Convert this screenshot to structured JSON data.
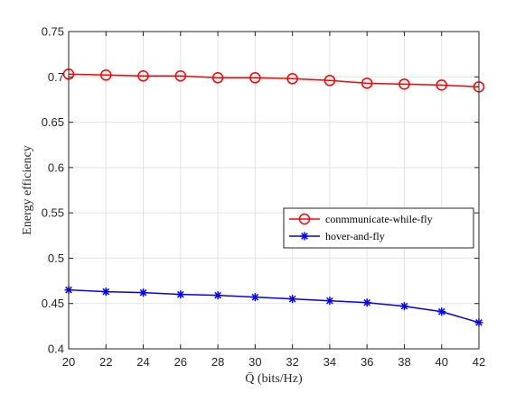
{
  "chart_data": {
    "type": "line",
    "xlabel": "Q̄ (bits/Hz)",
    "ylabel": "Energy efficiency",
    "xlim": [
      20,
      42
    ],
    "ylim": [
      0.4,
      0.75
    ],
    "xticks": [
      "20",
      "22",
      "24",
      "26",
      "28",
      "30",
      "32",
      "34",
      "36",
      "38",
      "40",
      "42"
    ],
    "yticks": [
      "0.4",
      "0.45",
      "0.5",
      "0.55",
      "0.6",
      "0.65",
      "0.7",
      "0.75"
    ],
    "grid": true,
    "legend_position": "center-right",
    "x": [
      20,
      22,
      24,
      26,
      28,
      30,
      32,
      34,
      36,
      38,
      40,
      42
    ],
    "series": [
      {
        "name": "conmmunicate-while-fly",
        "color": "#ff0000",
        "marker": "circle",
        "values": [
          0.703,
          0.702,
          0.701,
          0.701,
          0.699,
          0.699,
          0.698,
          0.696,
          0.693,
          0.692,
          0.691,
          0.689
        ]
      },
      {
        "name": "hover-and-fly",
        "color": "#0000ff",
        "marker": "asterisk",
        "values": [
          0.465,
          0.463,
          0.462,
          0.46,
          0.459,
          0.457,
          0.455,
          0.453,
          0.451,
          0.447,
          0.441,
          0.429
        ]
      }
    ]
  }
}
